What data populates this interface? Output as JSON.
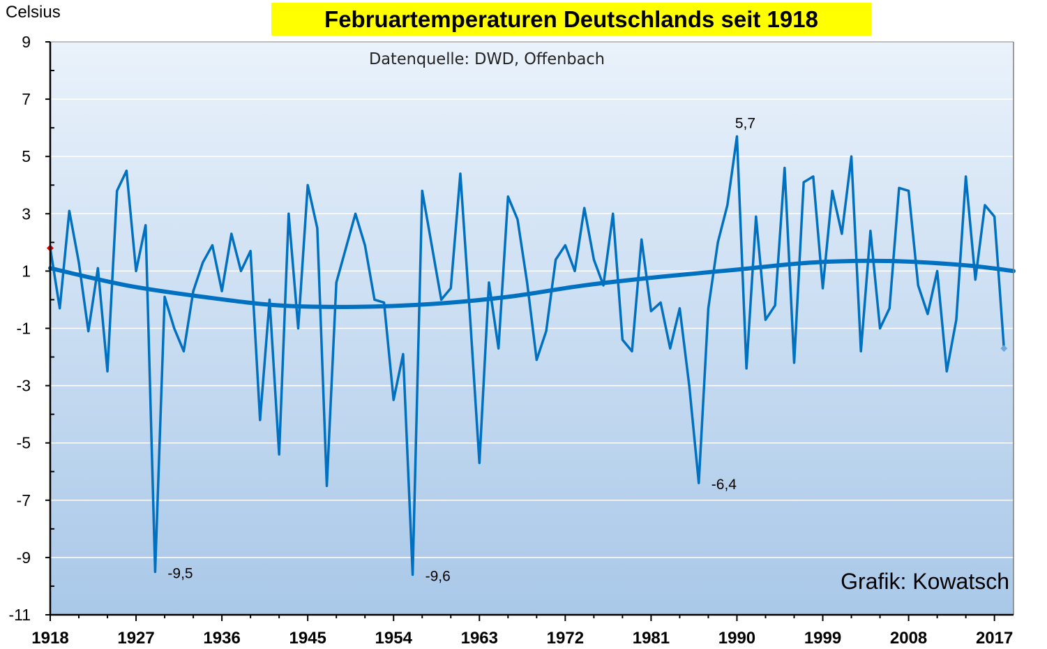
{
  "chart_data": {
    "type": "line",
    "title": "Februartemperaturen Deutschlands  seit 1918",
    "subtitle": "Datenquelle: DWD, Offenbach",
    "credit": "Grafik: Kowatsch",
    "ylabel": "Celsius",
    "xlabel": "",
    "xlim": [
      1918,
      2019
    ],
    "ylim": [
      -11,
      9
    ],
    "y_ticks": [
      9,
      7,
      5,
      3,
      1,
      -1,
      -3,
      -5,
      -7,
      -9,
      -11
    ],
    "y_tick_labels": [
      "9",
      "7",
      "5",
      "3",
      "1",
      "-1",
      "-3",
      "-5",
      "-7",
      "-9",
      "-11"
    ],
    "x_ticks": [
      1918,
      1927,
      1936,
      1945,
      1954,
      1963,
      1972,
      1981,
      1990,
      1999,
      2008,
      2017
    ],
    "x_tick_labels": [
      "1918",
      "1927",
      "1936",
      "1945",
      "1954",
      "1963",
      "1972",
      "1981",
      "1990",
      "1999",
      "2008",
      "2017"
    ],
    "grid": "horizontal",
    "series": [
      {
        "type": "line",
        "color": "#0070c0",
        "x": [
          1918,
          1919,
          1920,
          1921,
          1922,
          1923,
          1924,
          1925,
          1926,
          1927,
          1928,
          1929,
          1930,
          1931,
          1932,
          1933,
          1934,
          1935,
          1936,
          1937,
          1938,
          1939,
          1940,
          1941,
          1942,
          1943,
          1944,
          1945,
          1946,
          1947,
          1948,
          1949,
          1950,
          1951,
          1952,
          1953,
          1954,
          1955,
          1956,
          1957,
          1958,
          1959,
          1960,
          1961,
          1962,
          1963,
          1964,
          1965,
          1966,
          1967,
          1968,
          1969,
          1970,
          1971,
          1972,
          1973,
          1974,
          1975,
          1976,
          1977,
          1978,
          1979,
          1980,
          1981,
          1982,
          1983,
          1984,
          1985,
          1986,
          1987,
          1988,
          1989,
          1990,
          1991,
          1992,
          1993,
          1994,
          1995,
          1996,
          1997,
          1998,
          1999,
          2000,
          2001,
          2002,
          2003,
          2004,
          2005,
          2006,
          2007,
          2008,
          2009,
          2010,
          2011,
          2012,
          2013,
          2014,
          2015,
          2016,
          2017,
          2018
        ],
        "y": [
          1.8,
          -0.3,
          3.1,
          1.3,
          -1.1,
          1.1,
          -2.5,
          3.8,
          4.5,
          1.0,
          2.6,
          -9.5,
          0.1,
          -1.0,
          -1.8,
          0.3,
          1.3,
          1.9,
          0.3,
          2.3,
          1.0,
          1.7,
          -4.2,
          0.0,
          -5.4,
          3.0,
          -1.0,
          4.0,
          2.5,
          -6.5,
          0.6,
          1.8,
          3.0,
          1.9,
          0.0,
          -0.1,
          -3.5,
          -1.9,
          -9.6,
          3.8,
          1.9,
          0.0,
          0.4,
          4.4,
          -0.5,
          -5.7,
          0.6,
          -1.7,
          3.6,
          2.8,
          0.6,
          -2.1,
          -1.1,
          1.4,
          1.9,
          1.0,
          3.2,
          1.4,
          0.5,
          3.0,
          -1.4,
          -1.8,
          2.1,
          -0.4,
          -0.1,
          -1.7,
          -0.3,
          -3.0,
          -6.4,
          -0.3,
          2.0,
          3.3,
          5.7,
          -2.4,
          2.9,
          -0.7,
          -0.2,
          4.6,
          -2.2,
          4.1,
          4.3,
          0.4,
          3.8,
          2.3,
          5.0,
          -1.8,
          2.4,
          -1.0,
          -0.3,
          3.9,
          3.8,
          0.5,
          -0.5,
          1.0,
          -2.5,
          -0.7,
          4.3,
          0.7,
          3.3,
          2.9,
          -1.7
        ]
      },
      {
        "type": "trend",
        "color": "#0070c0",
        "x": [
          1918,
          1926,
          1934,
          1942,
          1950,
          1958,
          1966,
          1974,
          1982,
          1990,
          1998,
          2006,
          2014,
          2019
        ],
        "y": [
          1.1,
          0.5,
          0.1,
          -0.2,
          -0.25,
          -0.15,
          0.1,
          0.5,
          0.8,
          1.05,
          1.3,
          1.35,
          1.2,
          1.0
        ]
      }
    ],
    "annotations": [
      {
        "label": "5,7",
        "x": 1990,
        "y": 5.7
      },
      {
        "label": "-9,5",
        "x": 1929,
        "y": -9.5
      },
      {
        "label": "-9,6",
        "x": 1956,
        "y": -9.6
      },
      {
        "label": "-6,4",
        "x": 1986,
        "y": -6.4
      }
    ],
    "markers": [
      {
        "x": 1918,
        "y": 1.8,
        "color": "#e00000"
      },
      {
        "x": 2018,
        "y": -1.7,
        "color": "#6fa8dc"
      }
    ],
    "colors": {
      "background_top": "#eaf2fb",
      "background_bottom": "#a9c8e8",
      "title_background": "#ffff00",
      "line": "#0070c0",
      "grid": "#ffffff"
    }
  }
}
